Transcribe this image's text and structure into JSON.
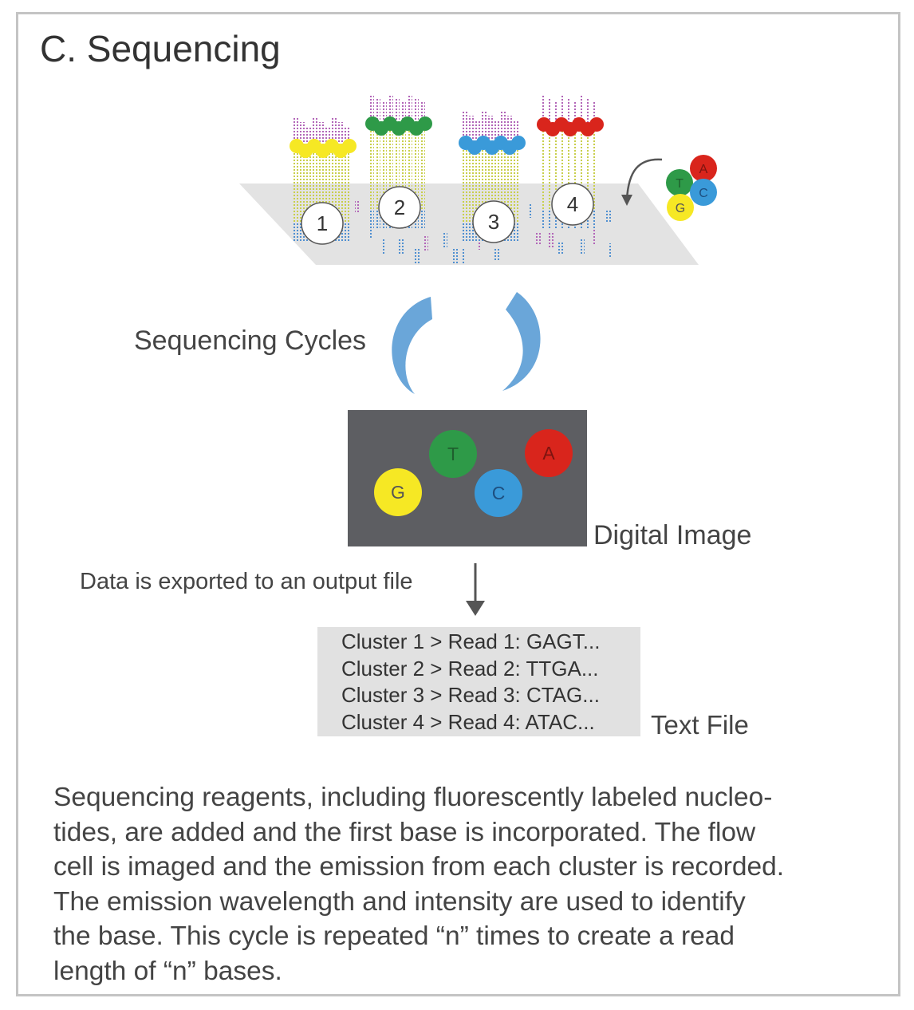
{
  "title": "C. Sequencing",
  "flow_cell": {
    "clusters": [
      {
        "number": "1",
        "base_color": "#f6e824"
      },
      {
        "number": "2",
        "base_color": "#2e9a48"
      },
      {
        "number": "3",
        "base_color": "#3a9ad9"
      },
      {
        "number": "4",
        "base_color": "#d9251c"
      }
    ],
    "nucleotide_bunch": [
      {
        "letter": "A",
        "color": "#d9251c"
      },
      {
        "letter": "T",
        "color": "#2e9a48"
      },
      {
        "letter": "C",
        "color": "#3a9ad9"
      },
      {
        "letter": "G",
        "color": "#f6e824"
      }
    ]
  },
  "cycles_label": "Sequencing Cycles",
  "digital_image": {
    "label": "Digital Image",
    "dots": [
      {
        "letter": "G",
        "color": "#f6e824"
      },
      {
        "letter": "T",
        "color": "#2e9a48"
      },
      {
        "letter": "C",
        "color": "#3a9ad9"
      },
      {
        "letter": "A",
        "color": "#d9251c"
      }
    ]
  },
  "export_label": "Data is exported to an output file",
  "text_file": {
    "label": "Text File",
    "lines": [
      "Cluster 1 > Read 1: GAGT...",
      "Cluster 2 > Read 2: TTGA...",
      "Cluster 3 > Read 3: CTAG...",
      "Cluster 4 > Read 4: ATAC..."
    ]
  },
  "description_lines": [
    "Sequencing reagents, including fluorescently labeled nucleo-",
    "tides, are added and the first base is incorporated. The flow",
    "cell is imaged and the emission from each cluster is recorded.",
    "The emission wavelength and intensity are used to identify",
    "the base. This cycle is repeated “n” times to create a read",
    "length of “n” bases."
  ]
}
